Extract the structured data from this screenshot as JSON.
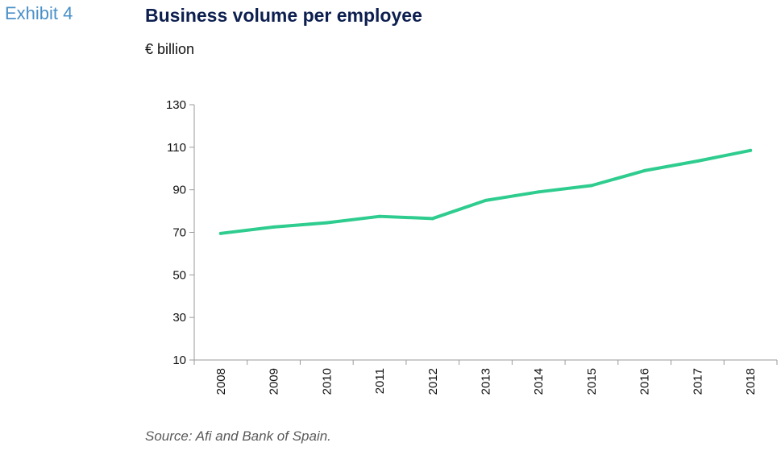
{
  "header": {
    "exhibit": "Exhibit 4"
  },
  "chart_data": {
    "type": "line",
    "title": "Business volume per employee",
    "ylabel": "€ billion",
    "xlabel": "",
    "categories": [
      "2008",
      "2009",
      "2010",
      "2011",
      "2012",
      "2013",
      "2014",
      "2015",
      "2016",
      "2017",
      "2018"
    ],
    "series": [
      {
        "values": [
          69.5,
          72.5,
          74.5,
          77.5,
          76.5,
          85,
          89,
          92,
          99,
          103.5,
          108.5
        ],
        "color": "#2ecc8e"
      }
    ],
    "ylim": [
      10,
      130
    ],
    "yticks": [
      10,
      30,
      50,
      70,
      90,
      110,
      130
    ],
    "grid": false,
    "legend": "none"
  },
  "footer": {
    "source": "Source: Afi and Bank of Spain."
  }
}
